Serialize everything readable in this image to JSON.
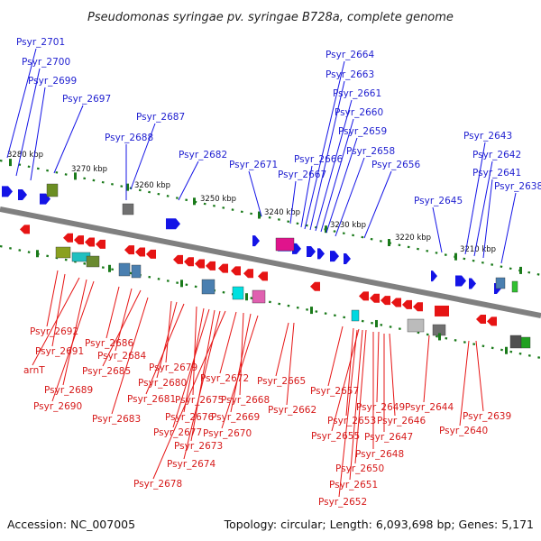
{
  "title": "Pseudomonas syringae pv. syringae B728a, complete genome",
  "footer": {
    "accession": "Accession: NC_007005",
    "summary": "Topology: circular; Length: 6,093,698 bp; Genes: 5,171"
  },
  "ticks": [
    "3280 kbp",
    "3270 kbp",
    "3260 kbp",
    "3250 kbp",
    "3240 kbp",
    "3230 kbp",
    "3220 kbp",
    "3210 kbp"
  ],
  "forward_labels": [
    "Psyr_2701",
    "Psyr_2700",
    "Psyr_2699",
    "Psyr_2697",
    "Psyr_2687",
    "Psyr_2688",
    "Psyr_2682",
    "Psyr_2671",
    "Psyr_2667",
    "Psyr_2666",
    "Psyr_2664",
    "Psyr_2663",
    "Psyr_2661",
    "Psyr_2660",
    "Psyr_2659",
    "Psyr_2658",
    "Psyr_2656",
    "Psyr_2645",
    "Psyr_2643",
    "Psyr_2642",
    "Psyr_2641",
    "Psyr_2638"
  ],
  "reverse_labels": [
    "Psyr_2692",
    "Psyr_2691",
    "arnT",
    "Psyr_2689",
    "Psyr_2690",
    "Psyr_2686",
    "Psyr_2684",
    "Psyr_2685",
    "Psyr_2683",
    "Psyr_2679",
    "Psyr_2680",
    "Psyr_2681",
    "Psyr_2675",
    "Psyr_2676",
    "Psyr_2677",
    "Psyr_2673",
    "Psyr_2674",
    "Psyr_2678",
    "Psyr_2672",
    "Psyr_2668",
    "Psyr_2669",
    "Psyr_2670",
    "Psyr_2665",
    "Psyr_2662",
    "Psyr_2657",
    "Psyr_2653",
    "Psyr_2655",
    "Psyr_2649",
    "Psyr_2646",
    "Psyr_2647",
    "Psyr_2648",
    "Psyr_2650",
    "Psyr_2651",
    "Psyr_2652",
    "Psyr_2644",
    "Psyr_2639",
    "Psyr_2640"
  ],
  "colors": {
    "forward": "#1414e6",
    "reverse": "#e61414",
    "backbone": "#808080",
    "tick": "#1a7a1a"
  }
}
